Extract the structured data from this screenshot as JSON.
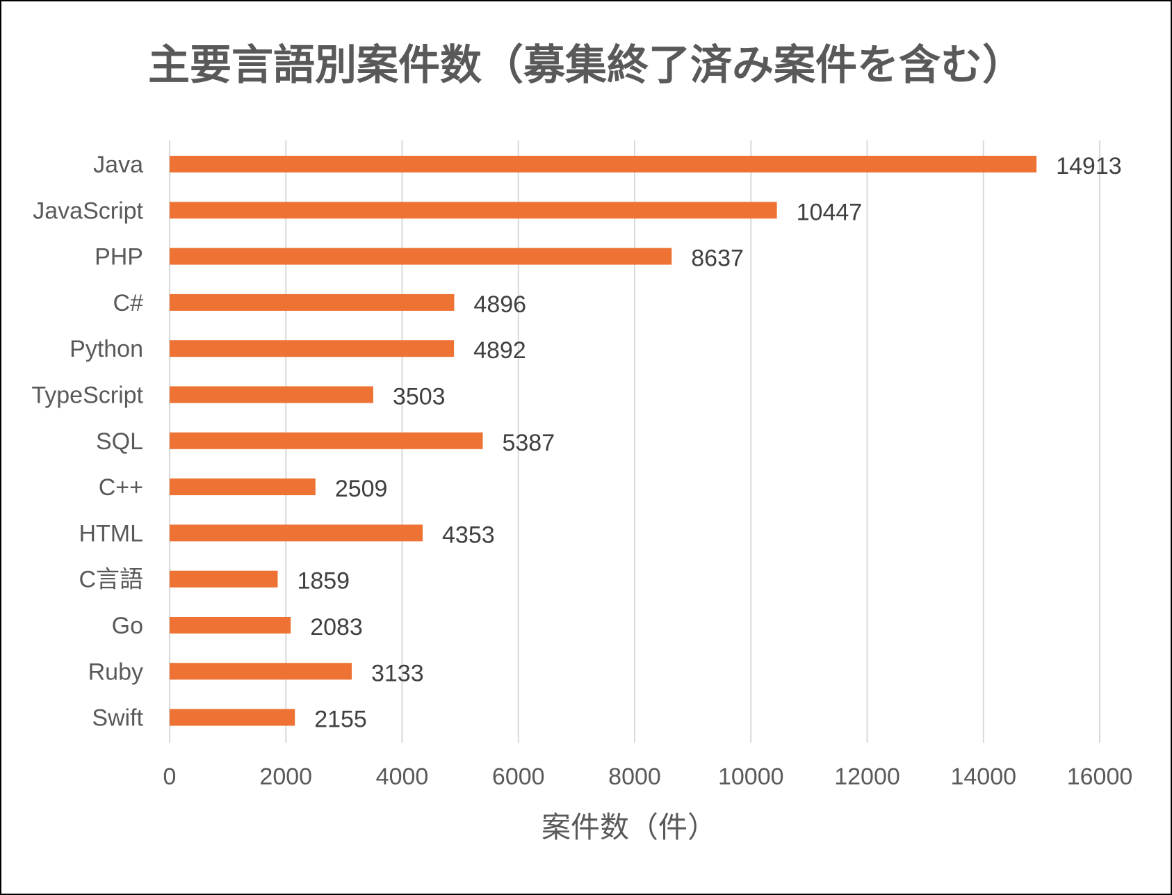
{
  "chart_data": {
    "type": "bar",
    "orientation": "horizontal",
    "title": "主要言語別案件数（募集終了済み案件を含む）",
    "xlabel": "案件数（件）",
    "ylabel": "",
    "categories": [
      "Java",
      "JavaScript",
      "PHP",
      "C#",
      "Python",
      "TypeScript",
      "SQL",
      "C++",
      "HTML",
      "C言語",
      "Go",
      "Ruby",
      "Swift"
    ],
    "values": [
      14913,
      10447,
      8637,
      4896,
      4892,
      3503,
      5387,
      2509,
      4353,
      1859,
      2083,
      3133,
      2155
    ],
    "xlim": [
      0,
      16000
    ],
    "xticks": [
      0,
      2000,
      4000,
      6000,
      8000,
      10000,
      12000,
      14000,
      16000
    ],
    "grid": "vertical",
    "legend": "none",
    "data_labels": true,
    "bar_color": "#ED7233",
    "grid_color": "#D9D9D9"
  }
}
